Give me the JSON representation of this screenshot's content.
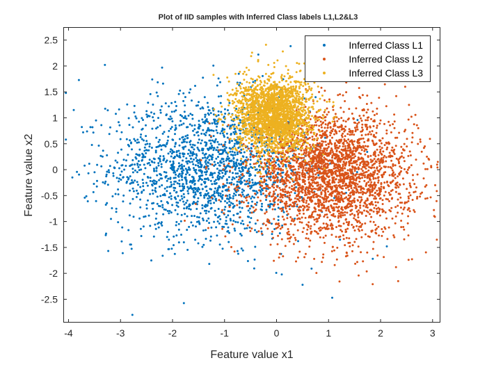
{
  "chart_data": {
    "type": "scatter",
    "title": "Plot of IID samples with Inferred Class labels L1,L2&L3",
    "xlabel": "Feature value x1",
    "ylabel": "Feature value x2",
    "xlim": [
      -4.1,
      3.15
    ],
    "ylim": [
      -2.95,
      2.75
    ],
    "xticks": [
      -4,
      -3,
      -2,
      -1,
      0,
      1,
      2,
      3
    ],
    "yticks": [
      -2.5,
      -2,
      -1.5,
      -1,
      -0.5,
      0,
      0.5,
      1,
      1.5,
      2,
      2.5
    ],
    "grid": false,
    "legend_position": "top-right",
    "series": [
      {
        "name": "Inferred Class L1",
        "color": "#0072BD",
        "distribution": {
          "mean": [
            -1.3,
            0.05
          ],
          "std": [
            0.95,
            0.68
          ],
          "count": 1800
        },
        "points": [
          [
            -3.3,
            2.02
          ],
          [
            -2.2,
            1.97
          ],
          [
            -3.8,
            1.73
          ],
          [
            -4.05,
            1.48
          ],
          [
            -0.35,
            2.22
          ],
          [
            -4.05,
            0.58
          ],
          [
            -2.6,
            -1.28
          ],
          [
            -0.75,
            -1.57
          ],
          [
            0.1,
            -2.02
          ],
          [
            0.5,
            -2.22
          ],
          [
            1.07,
            -2.47
          ],
          [
            1.22,
            -1.35
          ],
          [
            1.85,
            -1.72
          ],
          [
            2.12,
            -1.48
          ],
          [
            -3.9,
            1.15
          ],
          [
            -3.5,
            -0.05
          ]
        ]
      },
      {
        "name": "Inferred Class L2",
        "color": "#D95319",
        "distribution": {
          "mean": [
            1.05,
            -0.1
          ],
          "std": [
            0.78,
            0.6
          ],
          "count": 2800
        },
        "points": [
          [
            3.1,
            0.15
          ],
          [
            3.05,
            -0.3
          ],
          [
            2.85,
            0.45
          ],
          [
            2.3,
            1.42
          ],
          [
            2.55,
            -0.75
          ],
          [
            2.0,
            0.95
          ],
          [
            1.2,
            -1.3
          ],
          [
            2.9,
            -0.55
          ]
        ]
      },
      {
        "name": "Inferred Class L3",
        "color": "#EDB120",
        "distribution": {
          "mean": [
            -0.05,
            1.05
          ],
          "std": [
            0.36,
            0.36
          ],
          "count": 2200
        },
        "points": [
          [
            0.12,
            2.28
          ],
          [
            -0.55,
            1.35
          ],
          [
            0.45,
            1.9
          ]
        ]
      }
    ]
  }
}
